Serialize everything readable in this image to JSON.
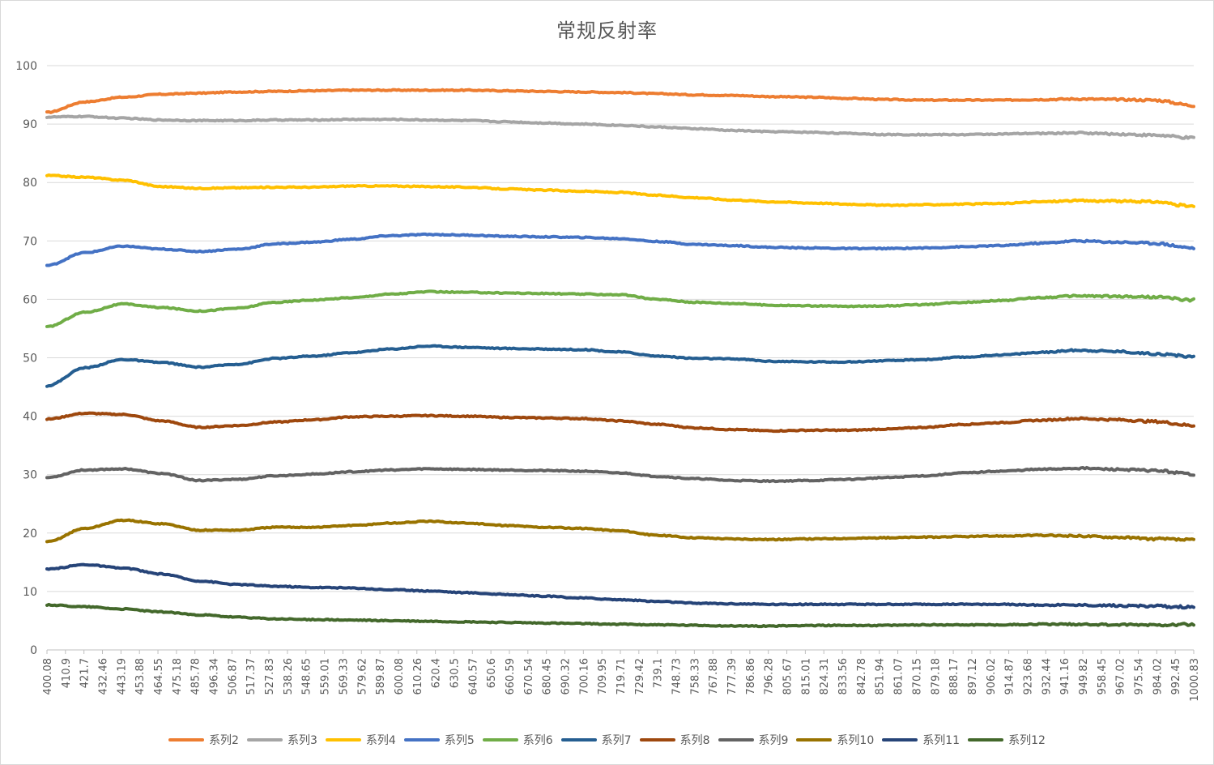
{
  "chart_data": {
    "type": "line",
    "title": "常规反射率",
    "xlabel": "",
    "ylabel": "",
    "ylim": [
      0,
      100
    ],
    "yticks": [
      0,
      10,
      20,
      30,
      40,
      50,
      60,
      70,
      80,
      90,
      100
    ],
    "grid": "horizontal",
    "legend_position": "bottom",
    "x_range": [
      400.08,
      1000.83
    ],
    "x_tick_labels": [
      "400.08",
      "410.9",
      "421.7",
      "432.46",
      "443.19",
      "453.88",
      "464.55",
      "475.18",
      "485.78",
      "496.34",
      "506.87",
      "517.37",
      "527.83",
      "538.26",
      "548.65",
      "559.01",
      "569.33",
      "579.62",
      "589.87",
      "600.08",
      "610.26",
      "620.4",
      "630.5",
      "640.57",
      "650.6",
      "660.59",
      "670.54",
      "680.45",
      "690.32",
      "700.16",
      "709.95",
      "719.71",
      "729.42",
      "739.1",
      "748.73",
      "758.33",
      "767.88",
      "777.39",
      "786.86",
      "796.28",
      "805.67",
      "815.01",
      "824.31",
      "833.56",
      "842.78",
      "851.94",
      "861.07",
      "870.15",
      "879.18",
      "888.17",
      "897.12",
      "906.02",
      "914.87",
      "923.68",
      "932.44",
      "941.16",
      "949.82",
      "958.45",
      "967.02",
      "975.54",
      "984.02",
      "992.45",
      "1000.83"
    ],
    "x": [
      400.08,
      420,
      440,
      460,
      480,
      500,
      520,
      540,
      560,
      580,
      600,
      620,
      640,
      660,
      680,
      700,
      720,
      740,
      760,
      780,
      800,
      820,
      840,
      860,
      880,
      900,
      920,
      940,
      960,
      980,
      1000.83
    ],
    "series": [
      {
        "name": "系列2",
        "color": "#ED7D31",
        "values": [
          92.0,
          93.8,
          94.6,
          95.1,
          95.3,
          95.5,
          95.6,
          95.7,
          95.8,
          95.8,
          95.8,
          95.8,
          95.7,
          95.6,
          95.5,
          95.4,
          95.2,
          95.0,
          94.9,
          94.7,
          94.6,
          94.4,
          94.2,
          94.1,
          94.1,
          94.1,
          94.2,
          94.3,
          94.2,
          94.1,
          93.2
        ]
      },
      {
        "name": "系列3",
        "color": "#A5A5A5",
        "values": [
          91.2,
          91.3,
          91.0,
          90.7,
          90.6,
          90.6,
          90.7,
          90.7,
          90.8,
          90.8,
          90.7,
          90.6,
          90.4,
          90.2,
          90.0,
          89.8,
          89.5,
          89.2,
          88.9,
          88.7,
          88.6,
          88.4,
          88.2,
          88.2,
          88.2,
          88.3,
          88.4,
          88.5,
          88.3,
          88.1,
          87.6
        ]
      },
      {
        "name": "系列4",
        "color": "#FFC000",
        "values": [
          81.2,
          80.9,
          80.4,
          79.3,
          79.0,
          79.1,
          79.2,
          79.2,
          79.4,
          79.4,
          79.3,
          79.2,
          78.9,
          78.7,
          78.5,
          78.3,
          77.8,
          77.4,
          77.0,
          76.7,
          76.5,
          76.3,
          76.1,
          76.2,
          76.3,
          76.4,
          76.7,
          76.9,
          76.8,
          76.7,
          75.9
        ]
      },
      {
        "name": "系列5",
        "color": "#4472C4",
        "values": [
          65.8,
          68.0,
          69.1,
          68.6,
          68.2,
          68.6,
          69.5,
          69.8,
          70.3,
          70.9,
          71.1,
          71.0,
          70.8,
          70.7,
          70.6,
          70.4,
          69.9,
          69.4,
          69.2,
          68.9,
          68.8,
          68.7,
          68.7,
          68.8,
          69.0,
          69.2,
          69.6,
          70.0,
          69.8,
          69.6,
          68.8
        ]
      },
      {
        "name": "系列6",
        "color": "#70AD47",
        "values": [
          55.3,
          57.8,
          59.2,
          58.6,
          58.0,
          58.5,
          59.5,
          59.9,
          60.3,
          60.9,
          61.3,
          61.2,
          61.1,
          61.0,
          60.9,
          60.8,
          60.0,
          59.5,
          59.3,
          59.0,
          58.9,
          58.8,
          58.9,
          59.1,
          59.5,
          59.8,
          60.3,
          60.6,
          60.5,
          60.4,
          59.9
        ]
      },
      {
        "name": "系列7",
        "color": "#255E91",
        "values": [
          45.2,
          48.3,
          49.7,
          49.2,
          48.4,
          48.9,
          49.9,
          50.3,
          50.9,
          51.5,
          52.0,
          51.8,
          51.6,
          51.5,
          51.4,
          51.0,
          50.3,
          49.9,
          49.8,
          49.4,
          49.3,
          49.3,
          49.5,
          49.7,
          50.1,
          50.5,
          50.9,
          51.3,
          51.1,
          50.7,
          50.2
        ]
      },
      {
        "name": "系列8",
        "color": "#9E480E",
        "values": [
          39.5,
          40.5,
          40.3,
          39.2,
          38.1,
          38.4,
          39.0,
          39.4,
          39.9,
          40.0,
          40.1,
          40.0,
          39.8,
          39.7,
          39.6,
          39.2,
          38.6,
          38.0,
          37.7,
          37.5,
          37.6,
          37.6,
          37.8,
          38.1,
          38.6,
          38.9,
          39.3,
          39.6,
          39.4,
          39.1,
          38.4
        ]
      },
      {
        "name": "系列9",
        "color": "#636363",
        "values": [
          29.5,
          30.8,
          31.0,
          30.2,
          29.0,
          29.2,
          29.8,
          30.1,
          30.5,
          30.8,
          31.0,
          30.9,
          30.8,
          30.7,
          30.6,
          30.3,
          29.7,
          29.3,
          29.0,
          28.9,
          29.0,
          29.2,
          29.5,
          29.8,
          30.3,
          30.6,
          30.9,
          31.1,
          30.9,
          30.7,
          30.1
        ]
      },
      {
        "name": "系列10",
        "color": "#997300",
        "values": [
          18.5,
          20.8,
          22.2,
          21.6,
          20.5,
          20.5,
          21.0,
          21.0,
          21.3,
          21.7,
          22.0,
          21.7,
          21.3,
          21.0,
          20.8,
          20.4,
          19.6,
          19.2,
          19.0,
          18.9,
          19.0,
          19.1,
          19.2,
          19.3,
          19.4,
          19.5,
          19.6,
          19.5,
          19.3,
          19.0,
          18.8
        ]
      },
      {
        "name": "系列11",
        "color": "#264478",
        "values": [
          13.8,
          14.6,
          14.0,
          13.0,
          11.8,
          11.2,
          10.9,
          10.7,
          10.6,
          10.3,
          10.1,
          9.8,
          9.5,
          9.2,
          8.9,
          8.6,
          8.3,
          8.0,
          7.9,
          7.8,
          7.8,
          7.8,
          7.8,
          7.8,
          7.8,
          7.8,
          7.7,
          7.7,
          7.6,
          7.5,
          7.3
        ]
      },
      {
        "name": "系列12",
        "color": "#43682B",
        "values": [
          7.7,
          7.4,
          7.0,
          6.5,
          6.0,
          5.6,
          5.3,
          5.2,
          5.1,
          5.0,
          4.9,
          4.8,
          4.7,
          4.6,
          4.5,
          4.4,
          4.3,
          4.2,
          4.1,
          4.1,
          4.2,
          4.2,
          4.2,
          4.3,
          4.3,
          4.3,
          4.4,
          4.4,
          4.3,
          4.3,
          4.4
        ]
      }
    ]
  }
}
